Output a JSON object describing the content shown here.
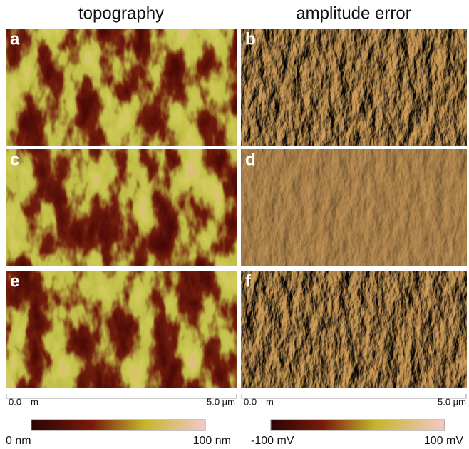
{
  "columns": [
    {
      "title": "topography"
    },
    {
      "title": "amplitude error"
    }
  ],
  "panels": [
    {
      "label": "a"
    },
    {
      "label": "b"
    },
    {
      "label": "c"
    },
    {
      "label": "d"
    },
    {
      "label": "e"
    },
    {
      "label": "f"
    }
  ],
  "scale_bars": [
    {
      "start": "0.0",
      "start_unit": "m",
      "end": "5.0 µm"
    },
    {
      "start": "0.0",
      "start_unit": "m",
      "end": "5.0 µm"
    }
  ],
  "colorbars": [
    {
      "min_label": "0 nm",
      "max_label": "100 nm"
    },
    {
      "min_label": "-100 mV",
      "max_label": "100 mV"
    }
  ]
}
